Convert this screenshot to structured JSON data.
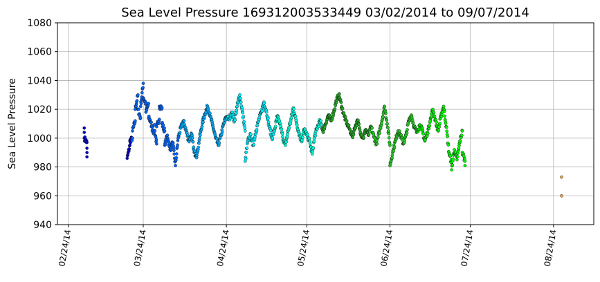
{
  "chart_data": {
    "type": "scatter",
    "title": "Sea Level Pressure 169312003533449  03/02/2014 to 09/07/2014",
    "xlabel": "",
    "ylabel": "Sea Level Pressure",
    "xlim": [
      "2014-02-20",
      "2014-09-08"
    ],
    "ylim": [
      940,
      1080
    ],
    "grid": true,
    "y_ticks": [
      940,
      960,
      980,
      1000,
      1020,
      1040,
      1060,
      1080
    ],
    "x_ticks": [
      {
        "date": "2014-02-24",
        "label": "02/24/14"
      },
      {
        "date": "2014-03-24",
        "label": "03/24/14"
      },
      {
        "date": "2014-04-24",
        "label": "04/24/14"
      },
      {
        "date": "2014-05-24",
        "label": "05/24/14"
      },
      {
        "date": "2014-06-24",
        "label": "06/24/14"
      },
      {
        "date": "2014-07-24",
        "label": "07/24/14"
      },
      {
        "date": "2014-08-24",
        "label": "08/24/14"
      }
    ],
    "color_scale": [
      "#0000cc",
      "#0066ff",
      "#00aaff",
      "#00eeff",
      "#00ffdd",
      "#22aa22",
      "#22cc22",
      "#00ff00"
    ],
    "outlier_color": "#e8a048",
    "points": [
      [
        "2014-03-02",
        1007
      ],
      [
        "2014-03-02",
        1004
      ],
      [
        "2014-03-02",
        1000
      ],
      [
        "2014-03-03",
        997
      ],
      [
        "2014-03-03",
        993
      ],
      [
        "2014-03-03",
        990
      ],
      [
        "2014-03-03",
        987
      ],
      [
        "2014-03-18",
        986
      ],
      [
        "2014-03-19",
        995
      ],
      [
        "2014-03-19",
        998
      ],
      [
        "2014-03-20",
        1000
      ],
      [
        "2014-03-20",
        1005
      ],
      [
        "2014-03-21",
        1012
      ],
      [
        "2014-03-21",
        1020
      ],
      [
        "2014-03-22",
        1030
      ],
      [
        "2014-03-22",
        1020
      ],
      [
        "2014-03-23",
        1014
      ],
      [
        "2014-03-23",
        1022
      ],
      [
        "2014-03-24",
        1038
      ],
      [
        "2014-03-24",
        1028
      ],
      [
        "2014-03-25",
        1024
      ],
      [
        "2014-03-25",
        1018
      ],
      [
        "2014-03-26",
        1024
      ],
      [
        "2014-03-26",
        1014
      ],
      [
        "2014-03-27",
        1011
      ],
      [
        "2014-03-27",
        1008
      ],
      [
        "2014-03-28",
        1004
      ],
      [
        "2014-03-28",
        1009
      ],
      [
        "2014-03-29",
        996
      ],
      [
        "2014-03-29",
        1008
      ],
      [
        "2014-03-30",
        1013
      ],
      [
        "2014-03-30",
        1022
      ],
      [
        "2014-03-31",
        1021
      ],
      [
        "2014-03-31",
        1010
      ],
      [
        "2014-04-01",
        1005
      ],
      [
        "2014-04-01",
        995
      ],
      [
        "2014-04-02",
        1002
      ],
      [
        "2014-04-03",
        992
      ],
      [
        "2014-04-04",
        997
      ],
      [
        "2014-04-05",
        981
      ],
      [
        "2014-04-06",
        1000
      ],
      [
        "2014-04-07",
        1007
      ],
      [
        "2014-04-08",
        1012
      ],
      [
        "2014-04-09",
        1005
      ],
      [
        "2014-04-10",
        998
      ],
      [
        "2014-04-11",
        1003
      ],
      [
        "2014-04-12",
        990
      ],
      [
        "2014-04-13",
        988
      ],
      [
        "2014-04-14",
        1000
      ],
      [
        "2014-04-15",
        1010
      ],
      [
        "2014-04-16",
        1017
      ],
      [
        "2014-04-17",
        1022
      ],
      [
        "2014-04-18",
        1015
      ],
      [
        "2014-04-19",
        1008
      ],
      [
        "2014-04-20",
        1000
      ],
      [
        "2014-04-21",
        995
      ],
      [
        "2014-04-22",
        1002
      ],
      [
        "2014-04-23",
        1010
      ],
      [
        "2014-04-24",
        1015
      ],
      [
        "2014-04-25",
        1013
      ],
      [
        "2014-04-26",
        1018
      ],
      [
        "2014-04-27",
        1012
      ],
      [
        "2014-04-28",
        1022
      ],
      [
        "2014-04-29",
        1030
      ],
      [
        "2014-04-30",
        1018
      ],
      [
        "2014-05-01",
        1005
      ],
      [
        "2014-05-01",
        984
      ],
      [
        "2014-05-02",
        998
      ],
      [
        "2014-05-03",
        1002
      ],
      [
        "2014-05-04",
        995
      ],
      [
        "2014-05-05",
        1005
      ],
      [
        "2014-05-06",
        1012
      ],
      [
        "2014-05-07",
        1018
      ],
      [
        "2014-05-08",
        1025
      ],
      [
        "2014-05-09",
        1018
      ],
      [
        "2014-05-10",
        1008
      ],
      [
        "2014-05-11",
        1000
      ],
      [
        "2014-05-12",
        1006
      ],
      [
        "2014-05-13",
        1015
      ],
      [
        "2014-05-14",
        1010
      ],
      [
        "2014-05-15",
        1001
      ],
      [
        "2014-05-16",
        995
      ],
      [
        "2014-05-17",
        1005
      ],
      [
        "2014-05-18",
        1012
      ],
      [
        "2014-05-19",
        1021
      ],
      [
        "2014-05-20",
        1012
      ],
      [
        "2014-05-21",
        1004
      ],
      [
        "2014-05-22",
        998
      ],
      [
        "2014-05-23",
        1006
      ],
      [
        "2014-05-24",
        1002
      ],
      [
        "2014-05-25",
        998
      ],
      [
        "2014-05-26",
        989
      ],
      [
        "2014-05-27",
        1002
      ],
      [
        "2014-05-28",
        1008
      ],
      [
        "2014-05-29",
        1012
      ],
      [
        "2014-05-30",
        1005
      ],
      [
        "2014-05-31",
        1010
      ],
      [
        "2014-06-01",
        1016
      ],
      [
        "2014-06-02",
        1012
      ],
      [
        "2014-06-03",
        1018
      ],
      [
        "2014-06-04",
        1026
      ],
      [
        "2014-06-05",
        1030
      ],
      [
        "2014-06-06",
        1022
      ],
      [
        "2014-06-07",
        1015
      ],
      [
        "2014-06-08",
        1010
      ],
      [
        "2014-06-09",
        1006
      ],
      [
        "2014-06-10",
        1001
      ],
      [
        "2014-06-11",
        1008
      ],
      [
        "2014-06-12",
        1012
      ],
      [
        "2014-06-13",
        1004
      ],
      [
        "2014-06-14",
        1000
      ],
      [
        "2014-06-15",
        1006
      ],
      [
        "2014-06-16",
        1002
      ],
      [
        "2014-06-17",
        1008
      ],
      [
        "2014-06-18",
        1001
      ],
      [
        "2014-06-19",
        996
      ],
      [
        "2014-06-20",
        1004
      ],
      [
        "2014-06-21",
        1012
      ],
      [
        "2014-06-22",
        1022
      ],
      [
        "2014-06-23",
        1010
      ],
      [
        "2014-06-24",
        995
      ],
      [
        "2014-06-24",
        981
      ],
      [
        "2014-06-25",
        990
      ],
      [
        "2014-06-26",
        998
      ],
      [
        "2014-06-27",
        1005
      ],
      [
        "2014-06-28",
        1002
      ],
      [
        "2014-06-29",
        996
      ],
      [
        "2014-06-30",
        1002
      ],
      [
        "2014-07-01",
        1012
      ],
      [
        "2014-07-02",
        1016
      ],
      [
        "2014-07-03",
        1008
      ],
      [
        "2014-07-04",
        1004
      ],
      [
        "2014-07-05",
        1009
      ],
      [
        "2014-07-06",
        1006
      ],
      [
        "2014-07-07",
        998
      ],
      [
        "2014-07-08",
        1004
      ],
      [
        "2014-07-09",
        1012
      ],
      [
        "2014-07-10",
        1020
      ],
      [
        "2014-07-11",
        1012
      ],
      [
        "2014-07-12",
        1005
      ],
      [
        "2014-07-13",
        1015
      ],
      [
        "2014-07-14",
        1022
      ],
      [
        "2014-07-15",
        1008
      ],
      [
        "2014-07-16",
        990
      ],
      [
        "2014-07-17",
        983
      ],
      [
        "2014-07-17",
        978
      ],
      [
        "2014-07-18",
        992
      ],
      [
        "2014-07-19",
        985
      ],
      [
        "2014-07-20",
        997
      ],
      [
        "2014-07-21",
        1005
      ],
      [
        "2014-07-21",
        990
      ],
      [
        "2014-07-22",
        984
      ],
      [
        "2014-07-22",
        981
      ],
      [
        "2014-08-27",
        973
      ],
      [
        "2014-08-27",
        960
      ]
    ]
  }
}
